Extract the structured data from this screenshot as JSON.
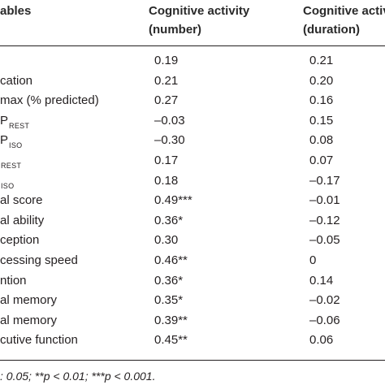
{
  "header": {
    "col0": "ables",
    "col1_line1": "Cognitive activity",
    "col1_line2": "(number)",
    "col2_line1": "Cognitive activit",
    "col2_line2": "(duration)"
  },
  "rows": [
    {
      "label": "",
      "sub": "",
      "number": "0.19",
      "duration": "0.21"
    },
    {
      "label": "cation",
      "sub": "",
      "number": "0.21",
      "duration": "0.20"
    },
    {
      "label": " max (% predicted)",
      "sub": "",
      "number": "0.27",
      "duration": "0.16"
    },
    {
      "label": "P",
      "sub": "REST",
      "number": "–0.03",
      "duration": "0.15"
    },
    {
      "label": "P",
      "sub": "ISO",
      "number": "–0.30",
      "duration": "0.08"
    },
    {
      "label": "",
      "sub": "REST",
      "number": "0.17",
      "duration": "0.07"
    },
    {
      "label": "",
      "sub": "ISO",
      "number": "0.18",
      "duration": "–0.17"
    },
    {
      "label": "al score",
      "sub": "",
      "number": "0.49***",
      "duration": "–0.01"
    },
    {
      "label": "al ability",
      "sub": "",
      "number": "0.36*",
      "duration": "–0.12"
    },
    {
      "label": "ception",
      "sub": "",
      "number": "0.30",
      "duration": "–0.05"
    },
    {
      "label": "cessing speed",
      "sub": "",
      "number": "0.46**",
      "duration": "0"
    },
    {
      "label": "ntion",
      "sub": "",
      "number": "0.36*",
      "duration": "0.14"
    },
    {
      "label": "al memory",
      "sub": "",
      "number": "0.35*",
      "duration": "–0.02"
    },
    {
      "label": "al memory",
      "sub": "",
      "number": "0.39**",
      "duration": "–0.06"
    },
    {
      "label": "cutive function",
      "sub": "",
      "number": "0.45**",
      "duration": "0.06"
    }
  ],
  "footnote": ": 0.05; **p < 0.01; ***p < 0.001."
}
